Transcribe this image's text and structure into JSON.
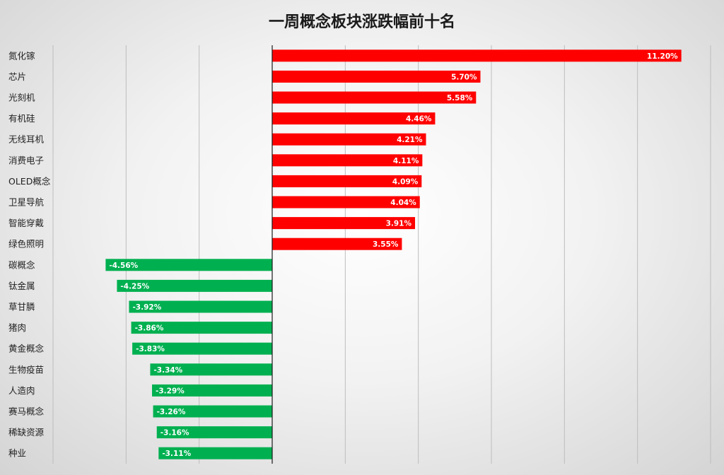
{
  "chart_data": {
    "type": "bar",
    "orientation": "horizontal",
    "title": "一周概念板块涨跌幅前十名",
    "xlabel": "",
    "ylabel": "",
    "xlim": [
      -6.0,
      12.0
    ],
    "grid": true,
    "legend": "none",
    "categories": [
      "氮化镓",
      "芯片",
      "光刻机",
      "有机硅",
      "无线耳机",
      "消费电子",
      "OLED概念",
      "卫星导航",
      "智能穿戴",
      "绿色照明",
      "碳概念",
      "钛金属",
      "草甘膦",
      "猪肉",
      "黄金概念",
      "生物疫苗",
      "人造肉",
      "赛马概念",
      "稀缺资源",
      "种业"
    ],
    "values": [
      11.2,
      5.7,
      5.58,
      4.46,
      4.21,
      4.11,
      4.09,
      4.04,
      3.91,
      3.55,
      -4.56,
      -4.25,
      -3.92,
      -3.86,
      -3.83,
      -3.34,
      -3.29,
      -3.26,
      -3.16,
      -3.11
    ],
    "value_labels": [
      "11.20%",
      "5.70%",
      "5.58%",
      "4.46%",
      "4.21%",
      "4.11%",
      "4.09%",
      "4.04%",
      "3.91%",
      "3.55%",
      "-4.56%",
      "-4.25%",
      "-3.92%",
      "-3.86%",
      "-3.83%",
      "-3.34%",
      "-3.29%",
      "-3.26%",
      "-3.16%",
      "-3.11%"
    ],
    "colors": {
      "positive": "#ff0000",
      "negative": "#00b050"
    }
  }
}
